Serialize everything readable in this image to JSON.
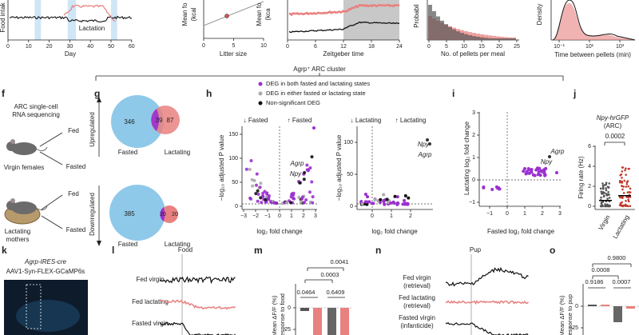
{
  "top_row": {
    "food_intake": {
      "y_label": "Food intak",
      "x_label": "Day",
      "x_ticks": [
        "0",
        "10",
        "20",
        "30",
        "40",
        "50",
        "60"
      ],
      "annotation": "Lactation"
    },
    "litter_size": {
      "y_label": "Mean fo",
      "y_unit": "(kcal",
      "x_label": "Litter size",
      "x_ticks": [
        "0",
        "5",
        "10"
      ]
    },
    "zeitgeber": {
      "y_label": "Mean fo",
      "y_unit": "(kca",
      "x_label": "Zeitgeber time",
      "x_ticks": [
        "0",
        "6",
        "12",
        "18",
        "24"
      ]
    },
    "meal_size": {
      "y_label": "Probabil",
      "x_label": "No. of pellets per meal",
      "x_ticks": [
        "0",
        "5",
        "10",
        "15",
        "20",
        "25"
      ]
    },
    "pellet_interval": {
      "y_label": "Density",
      "x_label": "Time between pellets (min)",
      "x_ticks": [
        "10⁻¹",
        "10¹",
        "10³"
      ]
    }
  },
  "cluster_title": "Agrp⁺ ARC cluster",
  "panels": {
    "f": {
      "letter": "f",
      "method": [
        "ARC single-cell",
        "RNA sequencing"
      ],
      "group1": "Virgin females",
      "group2": [
        "Lactating",
        "mothers"
      ],
      "conditions": [
        "Fed",
        "Fasted",
        "Fed",
        "Fasted"
      ]
    },
    "g": {
      "letter": "g",
      "set_labels": [
        "Fasted",
        "Lactating"
      ],
      "up": {
        "label": "Upregulated",
        "fasted_only": 346,
        "both": 39,
        "lactating_only": 87
      },
      "down": {
        "label": "Downregulated",
        "fasted_only": 385,
        "both": 20,
        "lactating_only": 20
      }
    },
    "h": {
      "letter": "h",
      "legend": [
        "DEG in both fasted and lactating states",
        "DEG in either fasted or lactating state",
        "Non-significant DEG"
      ],
      "y_label": "−log₁₀ adjusted P value",
      "x_label": "log₂ fold change",
      "fasted": {
        "down": "↓ Fasted",
        "up": "↑ Fasted",
        "y_ticks": [
          "0",
          "50",
          "100",
          "150"
        ],
        "x_ticks": [
          "−3",
          "−2",
          "−1",
          "0",
          "1",
          "2",
          "3"
        ],
        "genes": [
          "Agrp",
          "Npy"
        ]
      },
      "lactating": {
        "down": "↓ Lactating",
        "up": "↑ Lactating",
        "y_ticks": [
          "0",
          "50",
          "100"
        ],
        "x_ticks": [
          "0",
          "1",
          "2"
        ],
        "genes": [
          "Npy",
          "Agrp"
        ]
      }
    },
    "i": {
      "letter": "i",
      "y_label": "Lactating log₂ fold change",
      "x_label": "Fasted log₂ fold change",
      "y_ticks": [
        "−1",
        "0",
        "1",
        "2",
        "3"
      ],
      "x_ticks": [
        "−1",
        "0",
        "1",
        "2",
        "3"
      ],
      "genes": [
        "Agrp",
        "Npy"
      ]
    },
    "j": {
      "letter": "j",
      "title": "Npy-hrGFP",
      "subtitle": "(ARC)",
      "p_value": "0.0002",
      "y_label": "Firing rate (Hz)",
      "y_ticks": [
        "0",
        "2",
        "4",
        "6"
      ],
      "groups": [
        "Virgin",
        "Lactating"
      ]
    },
    "k": {
      "letter": "k",
      "lines": [
        "Agrp-IRES-cre",
        "AAV1-Syn-FLEX-GCaMP6s"
      ]
    },
    "l": {
      "letter": "l",
      "event": "Food",
      "traces": [
        "Fed virgin",
        "Fed lactating",
        "Fasted virgin"
      ]
    },
    "m": {
      "letter": "m",
      "p_values": [
        "0.0041",
        "0.0003",
        "0.0464",
        "0.6409"
      ],
      "y_ticks": [
        "0",
        "−25"
      ],
      "y_label": [
        "Mean ΔF/F (%)",
        "response to food"
      ]
    },
    "n": {
      "letter": "n",
      "event": "Pup",
      "traces": [
        [
          "Fed virgin",
          "(retrieval)"
        ],
        [
          "Fed lactating",
          "(retrieval)"
        ],
        [
          "Fasted virgin",
          "(infanticide)"
        ]
      ]
    },
    "o": {
      "letter": "o",
      "p_values": [
        "0.9800",
        "0.0008",
        "0.9186",
        "0.0007"
      ],
      "y_ticks": [
        "0",
        "−25"
      ],
      "y_label": [
        "Mean ΔF/F (%)",
        "response to pup"
      ]
    }
  }
}
